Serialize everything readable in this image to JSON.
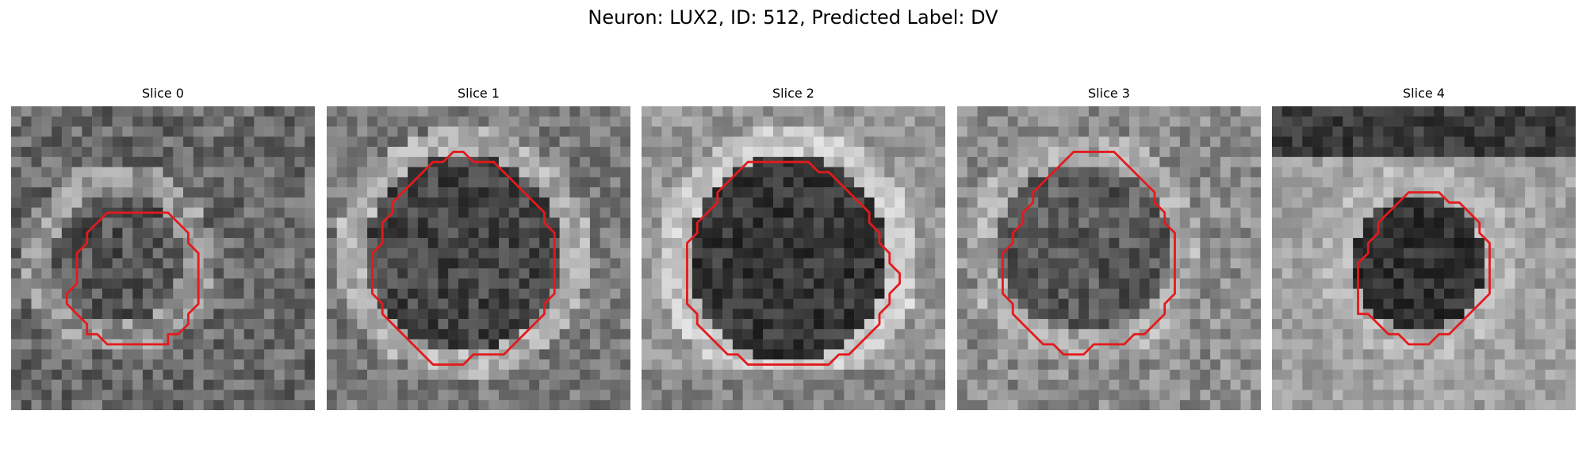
{
  "figure": {
    "title": "Neuron: LUX2, ID: 512, Predicted Label: DV"
  },
  "slices": [
    {
      "label": "Slice 0",
      "outline_color": "#e41a1c",
      "outline_grid": [
        [
          11,
          10
        ],
        [
          12,
          10
        ],
        [
          13,
          10
        ],
        [
          14,
          10
        ],
        [
          15,
          10
        ],
        [
          16,
          11
        ],
        [
          17,
          12
        ],
        [
          17,
          13
        ],
        [
          18,
          14
        ],
        [
          18,
          15
        ],
        [
          18,
          16
        ],
        [
          18,
          17
        ],
        [
          18,
          18
        ],
        [
          18,
          19
        ],
        [
          17,
          20
        ],
        [
          17,
          21
        ],
        [
          16,
          22
        ],
        [
          15,
          22
        ],
        [
          15,
          23
        ],
        [
          14,
          23
        ],
        [
          13,
          23
        ],
        [
          12,
          23
        ],
        [
          11,
          23
        ],
        [
          10,
          23
        ],
        [
          9,
          23
        ],
        [
          8,
          22
        ],
        [
          7,
          22
        ],
        [
          7,
          21
        ],
        [
          6,
          20
        ],
        [
          5,
          19
        ],
        [
          5,
          18
        ],
        [
          6,
          17
        ],
        [
          6,
          16
        ],
        [
          6,
          15
        ],
        [
          6,
          14
        ],
        [
          7,
          13
        ],
        [
          7,
          12
        ],
        [
          8,
          11
        ],
        [
          9,
          10
        ],
        [
          10,
          10
        ]
      ]
    },
    {
      "label": "Slice 1",
      "outline_color": "#e41a1c",
      "outline_grid": [
        [
          12,
          4
        ],
        [
          13,
          4
        ],
        [
          14,
          5
        ],
        [
          15,
          5
        ],
        [
          16,
          5
        ],
        [
          17,
          6
        ],
        [
          18,
          7
        ],
        [
          19,
          8
        ],
        [
          20,
          9
        ],
        [
          21,
          10
        ],
        [
          21,
          11
        ],
        [
          22,
          12
        ],
        [
          22,
          13
        ],
        [
          22,
          14
        ],
        [
          22,
          15
        ],
        [
          22,
          16
        ],
        [
          22,
          17
        ],
        [
          22,
          18
        ],
        [
          21,
          19
        ],
        [
          21,
          20
        ],
        [
          20,
          21
        ],
        [
          19,
          22
        ],
        [
          18,
          23
        ],
        [
          17,
          24
        ],
        [
          16,
          24
        ],
        [
          15,
          24
        ],
        [
          14,
          24
        ],
        [
          13,
          25
        ],
        [
          12,
          25
        ],
        [
          11,
          25
        ],
        [
          10,
          25
        ],
        [
          9,
          24
        ],
        [
          8,
          23
        ],
        [
          7,
          22
        ],
        [
          6,
          21
        ],
        [
          5,
          20
        ],
        [
          5,
          19
        ],
        [
          4,
          18
        ],
        [
          4,
          17
        ],
        [
          4,
          16
        ],
        [
          4,
          15
        ],
        [
          4,
          14
        ],
        [
          5,
          13
        ],
        [
          5,
          12
        ],
        [
          5,
          11
        ],
        [
          6,
          10
        ],
        [
          6,
          9
        ],
        [
          7,
          8
        ],
        [
          8,
          7
        ],
        [
          9,
          6
        ],
        [
          10,
          5
        ],
        [
          11,
          5
        ]
      ]
    },
    {
      "label": "Slice 2",
      "outline_color": "#e41a1c",
      "outline_grid": [
        [
          10,
          5
        ],
        [
          11,
          5
        ],
        [
          12,
          5
        ],
        [
          13,
          5
        ],
        [
          14,
          5
        ],
        [
          15,
          5
        ],
        [
          16,
          5
        ],
        [
          17,
          6
        ],
        [
          18,
          6
        ],
        [
          19,
          7
        ],
        [
          20,
          8
        ],
        [
          21,
          9
        ],
        [
          22,
          10
        ],
        [
          22,
          11
        ],
        [
          23,
          12
        ],
        [
          23,
          13
        ],
        [
          24,
          14
        ],
        [
          24,
          15
        ],
        [
          25,
          16
        ],
        [
          25,
          17
        ],
        [
          24,
          18
        ],
        [
          24,
          19
        ],
        [
          23,
          20
        ],
        [
          23,
          21
        ],
        [
          22,
          22
        ],
        [
          21,
          23
        ],
        [
          20,
          24
        ],
        [
          19,
          24
        ],
        [
          18,
          25
        ],
        [
          17,
          25
        ],
        [
          16,
          25
        ],
        [
          15,
          25
        ],
        [
          14,
          25
        ],
        [
          13,
          25
        ],
        [
          12,
          25
        ],
        [
          11,
          25
        ],
        [
          10,
          25
        ],
        [
          9,
          24
        ],
        [
          8,
          24
        ],
        [
          7,
          23
        ],
        [
          6,
          22
        ],
        [
          5,
          21
        ],
        [
          5,
          20
        ],
        [
          4,
          19
        ],
        [
          4,
          18
        ],
        [
          4,
          17
        ],
        [
          4,
          16
        ],
        [
          4,
          15
        ],
        [
          4,
          14
        ],
        [
          4,
          13
        ],
        [
          5,
          12
        ],
        [
          5,
          11
        ],
        [
          6,
          10
        ],
        [
          7,
          9
        ],
        [
          7,
          8
        ],
        [
          8,
          7
        ],
        [
          9,
          6
        ]
      ]
    },
    {
      "label": "Slice 3",
      "outline_color": "#e41a1c",
      "outline_grid": [
        [
          12,
          4
        ],
        [
          13,
          4
        ],
        [
          14,
          4
        ],
        [
          15,
          4
        ],
        [
          16,
          5
        ],
        [
          17,
          6
        ],
        [
          18,
          7
        ],
        [
          19,
          8
        ],
        [
          19,
          9
        ],
        [
          20,
          10
        ],
        [
          20,
          11
        ],
        [
          21,
          12
        ],
        [
          21,
          13
        ],
        [
          21,
          14
        ],
        [
          21,
          15
        ],
        [
          21,
          16
        ],
        [
          21,
          17
        ],
        [
          21,
          18
        ],
        [
          20,
          19
        ],
        [
          20,
          20
        ],
        [
          19,
          21
        ],
        [
          18,
          22
        ],
        [
          17,
          22
        ],
        [
          16,
          23
        ],
        [
          15,
          23
        ],
        [
          14,
          23
        ],
        [
          13,
          23
        ],
        [
          12,
          24
        ],
        [
          11,
          24
        ],
        [
          10,
          24
        ],
        [
          9,
          23
        ],
        [
          8,
          23
        ],
        [
          7,
          22
        ],
        [
          6,
          21
        ],
        [
          5,
          20
        ],
        [
          5,
          19
        ],
        [
          4,
          18
        ],
        [
          4,
          17
        ],
        [
          4,
          16
        ],
        [
          4,
          15
        ],
        [
          4,
          14
        ],
        [
          5,
          13
        ],
        [
          5,
          12
        ],
        [
          6,
          11
        ],
        [
          6,
          10
        ],
        [
          7,
          9
        ],
        [
          7,
          8
        ],
        [
          8,
          7
        ],
        [
          9,
          6
        ],
        [
          10,
          5
        ],
        [
          11,
          4
        ]
      ]
    },
    {
      "label": "Slice 4",
      "outline_color": "#e41a1c",
      "outline_grid": [
        [
          13,
          8
        ],
        [
          14,
          8
        ],
        [
          15,
          8
        ],
        [
          16,
          8
        ],
        [
          17,
          9
        ],
        [
          18,
          9
        ],
        [
          19,
          10
        ],
        [
          20,
          11
        ],
        [
          20,
          12
        ],
        [
          21,
          13
        ],
        [
          21,
          14
        ],
        [
          21,
          15
        ],
        [
          21,
          16
        ],
        [
          21,
          17
        ],
        [
          21,
          18
        ],
        [
          20,
          19
        ],
        [
          19,
          20
        ],
        [
          18,
          21
        ],
        [
          17,
          22
        ],
        [
          16,
          22
        ],
        [
          15,
          23
        ],
        [
          14,
          23
        ],
        [
          13,
          23
        ],
        [
          12,
          22
        ],
        [
          11,
          22
        ],
        [
          10,
          21
        ],
        [
          9,
          20
        ],
        [
          8,
          20
        ],
        [
          8,
          19
        ],
        [
          8,
          18
        ],
        [
          8,
          17
        ],
        [
          8,
          16
        ],
        [
          8,
          15
        ],
        [
          9,
          14
        ],
        [
          9,
          13
        ],
        [
          10,
          12
        ],
        [
          10,
          11
        ],
        [
          11,
          10
        ],
        [
          12,
          9
        ]
      ]
    }
  ]
}
